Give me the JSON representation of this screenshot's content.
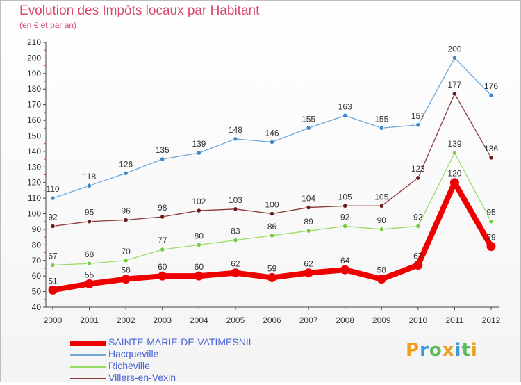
{
  "header": {
    "title": "Evolution des Impôts locaux par Habitant",
    "subtitle": "(en € et par an)"
  },
  "logo": {
    "text": "Proxiti",
    "letters": [
      {
        "ch": "P",
        "color": "#f0a020"
      },
      {
        "ch": "r",
        "color": "#3a9ad9"
      },
      {
        "ch": "o",
        "color": "#5cb85c"
      },
      {
        "ch": "x",
        "color": "#f0a020"
      },
      {
        "ch": "i",
        "color": "#3a9ad9"
      },
      {
        "ch": "t",
        "color": "#5cb85c"
      },
      {
        "ch": "i",
        "color": "#f0a020"
      }
    ]
  },
  "chart_data": {
    "type": "line",
    "title": "Evolution des Impôts locaux par Habitant",
    "subtitle": "(en € et par an)",
    "categories": [
      "2000",
      "2001",
      "2002",
      "2003",
      "2004",
      "2005",
      "2006",
      "2007",
      "2008",
      "2009",
      "2010",
      "2011",
      "2012"
    ],
    "ylim": [
      40,
      210
    ],
    "yticks": [
      40,
      50,
      60,
      70,
      80,
      90,
      100,
      110,
      120,
      130,
      140,
      150,
      160,
      170,
      180,
      190,
      200,
      210
    ],
    "grid": false,
    "legend_position": "bottom-left",
    "series": [
      {
        "name": "SAINTE-MARIE-DE-VATIMESNIL",
        "color": "#ee0000",
        "highlight": true,
        "values": [
          51,
          55,
          58,
          60,
          60,
          62,
          59,
          62,
          64,
          58,
          67,
          120,
          79
        ]
      },
      {
        "name": "Hacqueville",
        "color": "#6fa8dc",
        "marker": "#3f88c8",
        "values": [
          110,
          118,
          126,
          135,
          139,
          148,
          146,
          155,
          163,
          155,
          157,
          200,
          176
        ]
      },
      {
        "name": "Richeville",
        "color": "#99dd66",
        "marker": "#77cc44",
        "values": [
          67,
          68,
          70,
          77,
          80,
          83,
          86,
          89,
          92,
          90,
          92,
          139,
          95
        ]
      },
      {
        "name": "Villers-en-Vexin",
        "color": "#8b3a3a",
        "marker": "#6b1c1c",
        "values": [
          92,
          95,
          96,
          98,
          102,
          103,
          100,
          104,
          105,
          105,
          123,
          177,
          136
        ]
      }
    ]
  }
}
